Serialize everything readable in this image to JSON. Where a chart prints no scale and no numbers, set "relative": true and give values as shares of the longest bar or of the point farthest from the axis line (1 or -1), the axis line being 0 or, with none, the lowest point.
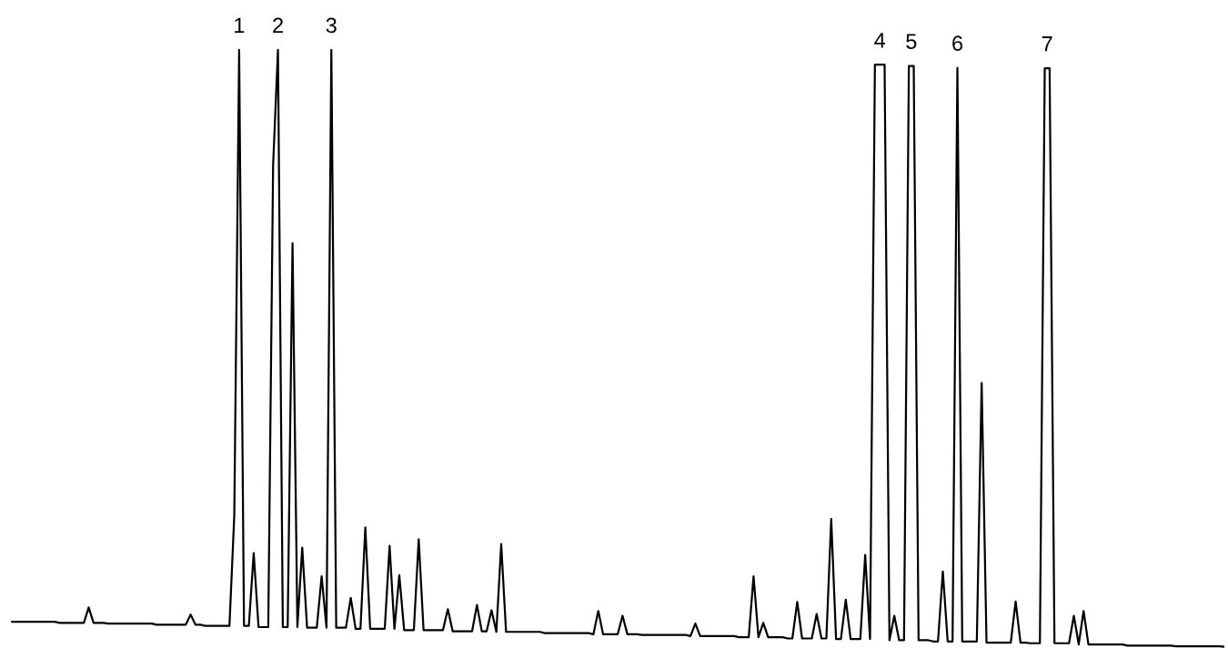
{
  "chart_data": {
    "type": "line",
    "relative": true,
    "categories": [
      null,
      null,
      null,
      null,
      null,
      null,
      null,
      null,
      null,
      null,
      null,
      null,
      null,
      null,
      null,
      null,
      null,
      null,
      null,
      null,
      null,
      null,
      null,
      null,
      null,
      null,
      null,
      null,
      null,
      null,
      null,
      null,
      null,
      null,
      null,
      null,
      null,
      null,
      null,
      null,
      null,
      null,
      null,
      null,
      null,
      null,
      null,
      null,
      null,
      null,
      null,
      null,
      null,
      null,
      null,
      null,
      null,
      null,
      null,
      null,
      null,
      null,
      null,
      null,
      null,
      null,
      null,
      null,
      null,
      null,
      null,
      null,
      null,
      null,
      null,
      null,
      null,
      null,
      null,
      null,
      null,
      null,
      null,
      null,
      null,
      null,
      null,
      null,
      null,
      null,
      null,
      null,
      null,
      null,
      null,
      null,
      null,
      null,
      null,
      null,
      null,
      null,
      null,
      null,
      null,
      null,
      null,
      null,
      null,
      null,
      null,
      null,
      null,
      null,
      null,
      null,
      null,
      null,
      null,
      null,
      null,
      null,
      null,
      null,
      null,
      null,
      null,
      null,
      null,
      null,
      null,
      null,
      null,
      null,
      null,
      null,
      null,
      null,
      null,
      null,
      null,
      null,
      null,
      null,
      null,
      null,
      null,
      null,
      null,
      null,
      null,
      null,
      null,
      null,
      null,
      null,
      null,
      null,
      null,
      null,
      null,
      null,
      null,
      null,
      null,
      null,
      null,
      null,
      null,
      null,
      null,
      null,
      null,
      null,
      null,
      null,
      null,
      null,
      null,
      null,
      null,
      null,
      null,
      null,
      null,
      null,
      null,
      null,
      null,
      null,
      null,
      null,
      null,
      null,
      null,
      null,
      null,
      null,
      null,
      null,
      null,
      null,
      null,
      null,
      null,
      null,
      null,
      null,
      null,
      null,
      null,
      null,
      null,
      null,
      null,
      null,
      null,
      null,
      null,
      null,
      null,
      null,
      null,
      null,
      null,
      null,
      null,
      null,
      null,
      null,
      null,
      null,
      null,
      null,
      null,
      null,
      null,
      null,
      null,
      null,
      null,
      null,
      null,
      null,
      null,
      null,
      null,
      null,
      null,
      null,
      null
    ],
    "series": [
      {
        "color": "#000000",
        "values": [
          0.042,
          0.042,
          0.042,
          0.042,
          0.042,
          0.042,
          0.042,
          0.042,
          0.042,
          0.042,
          0.04,
          0.04,
          0.04,
          0.04,
          0.04,
          0.04,
          0.066,
          0.04,
          0.04,
          0.04,
          0.039,
          0.039,
          0.039,
          0.039,
          0.039,
          0.039,
          0.039,
          0.039,
          0.039,
          0.039,
          0.037,
          0.037,
          0.037,
          0.037,
          0.037,
          0.037,
          0.037,
          0.054,
          0.037,
          0.037,
          0.035,
          0.035,
          0.035,
          0.035,
          0.035,
          0.035,
          0.22,
          1,
          0.035,
          0.035,
          0.157,
          0.033,
          0.033,
          0.033,
          0.807,
          1,
          0.033,
          0.033,
          0.676,
          0.033,
          0.166,
          0.032,
          0.032,
          0.032,
          0.118,
          0.032,
          1,
          0.032,
          0.032,
          0.032,
          0.082,
          0.03,
          0.03,
          0.2,
          0.03,
          0.03,
          0.03,
          0.03,
          0.169,
          0.03,
          0.12,
          0.028,
          0.028,
          0.028,
          0.18,
          0.028,
          0.028,
          0.028,
          0.028,
          0.028,
          0.063,
          0.026,
          0.026,
          0.026,
          0.026,
          0.026,
          0.07,
          0.026,
          0.026,
          0.061,
          0.025,
          0.172,
          0.025,
          0.025,
          0.025,
          0.025,
          0.025,
          0.025,
          0.025,
          0.025,
          0.023,
          0.023,
          0.023,
          0.023,
          0.023,
          0.023,
          0.023,
          0.023,
          0.023,
          0.023,
          0.021,
          0.06,
          0.021,
          0.021,
          0.021,
          0.021,
          0.052,
          0.021,
          0.021,
          0.021,
          0.02,
          0.02,
          0.02,
          0.02,
          0.02,
          0.02,
          0.02,
          0.02,
          0.02,
          0.02,
          0.018,
          0.039,
          0.018,
          0.018,
          0.018,
          0.018,
          0.018,
          0.018,
          0.018,
          0.018,
          0.016,
          0.016,
          0.016,
          0.118,
          0.016,
          0.04,
          0.016,
          0.016,
          0.016,
          0.016,
          0.014,
          0.014,
          0.075,
          0.014,
          0.014,
          0.014,
          0.055,
          0.014,
          0.014,
          0.214,
          0.013,
          0.013,
          0.079,
          0.013,
          0.013,
          0.013,
          0.154,
          0.013,
          0.975,
          0.975,
          0.975,
          0.011,
          0.052,
          0.011,
          0.011,
          0.973,
          0.973,
          0.011,
          0.011,
          0.011,
          0.009,
          0.009,
          0.126,
          0.009,
          0.009,
          0.97,
          0.009,
          0.009,
          0.009,
          0.009,
          0.442,
          0.007,
          0.007,
          0.007,
          0.007,
          0.007,
          0.007,
          0.076,
          0.007,
          0.007,
          0.006,
          0.006,
          0.006,
          0.969,
          0.969,
          0.006,
          0.006,
          0.006,
          0.006,
          0.052,
          0.004,
          0.06,
          0.004,
          0.004,
          0.004,
          0.004,
          0.004,
          0.004,
          0.004,
          0.004,
          0.002,
          0.002,
          0.002,
          0.002,
          0.002,
          0.002,
          0.002,
          0.002,
          0.002,
          0.002,
          0.001,
          0.001,
          0.001,
          0.001,
          0.001,
          0.001,
          0.001,
          0.001,
          0.001,
          0.001,
          0
        ]
      }
    ],
    "annotations": [
      {
        "text": "1",
        "y": 1
      },
      {
        "text": "2",
        "y": 1
      },
      {
        "text": "3",
        "y": 1
      },
      {
        "text": "4",
        "y": 0.975
      },
      {
        "text": "5",
        "y": 0.973
      },
      {
        "text": "6",
        "y": 0.97
      },
      {
        "text": "7",
        "y": 0.969
      }
    ]
  }
}
